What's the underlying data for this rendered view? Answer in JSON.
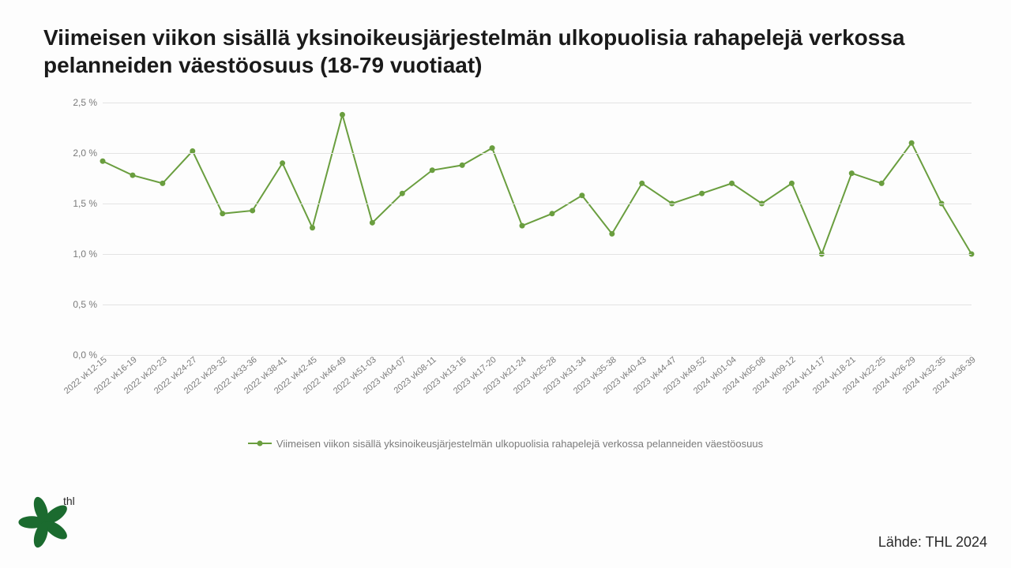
{
  "title": "Viimeisen viikon sisällä yksinoikeusjärjestelmän ulkopuolisia rahapelejä verkossa pelanneiden väestöosuus (18-79 vuotiaat)",
  "chart": {
    "type": "line",
    "series_name": "Viimeisen viikon sisällä yksinoikeusjärjestelmän ulkopuolisia rahapelejä verkossa pelanneiden väestöosuus",
    "categories": [
      "2022 vk12-15",
      "2022 vk16-19",
      "2022 vk20-23",
      "2022 vk24-27",
      "2022 vk29-32",
      "2022 vk33-36",
      "2022 vk38-41",
      "2022 vk42-45",
      "2022 vk46-49",
      "2022 vk51-03",
      "2023 vk04-07",
      "2023 vk08-11",
      "2023 vk13-16",
      "2023 vk17-20",
      "2023 vk21-24",
      "2023 vk25-28",
      "2023 vk31-34",
      "2023 vk35-38",
      "2023 vk40-43",
      "2023 vk44-47",
      "2023 vk49-52",
      "2024 vk01-04",
      "2024 vk05-08",
      "2024 vk09-12",
      "2024 vk14-17",
      "2024 vk18-21",
      "2024 vk22-25",
      "2024 vk26-29",
      "2024 vk32-35",
      "2024 vk36-39"
    ],
    "values": [
      1.92,
      1.78,
      1.7,
      2.02,
      1.4,
      1.43,
      1.9,
      1.26,
      2.38,
      1.31,
      1.6,
      1.83,
      1.88,
      2.05,
      1.28,
      1.4,
      1.58,
      1.2,
      1.7,
      1.5,
      1.6,
      1.7,
      1.5,
      1.7,
      1.0,
      1.8,
      1.7,
      2.1,
      1.5,
      1.0
    ],
    "ylim": [
      0.0,
      2.5
    ],
    "ytick_step": 0.5,
    "ytick_labels": [
      "0,0 %",
      "0,5 %",
      "1,0 %",
      "1,5 %",
      "2,0 %",
      "2,5 %"
    ],
    "line_color": "#6a9e3f",
    "marker_color": "#6a9e3f",
    "marker_radius": 3.5,
    "line_width": 2,
    "grid_color": "#e3e3e3",
    "background_color": "#fdfdfd",
    "title_fontsize": 28,
    "axis_fontsize": 12,
    "xlabel_rotation_deg": -40
  },
  "legend_label": "Viimeisen viikon sisällä yksinoikeusjärjestelmän ulkopuolisia rahapelejä verkossa pelanneiden väestöosuus",
  "source_label": "Lähde:  THL 2024",
  "logo_text": "thl",
  "logo_color": "#1b6b2f"
}
